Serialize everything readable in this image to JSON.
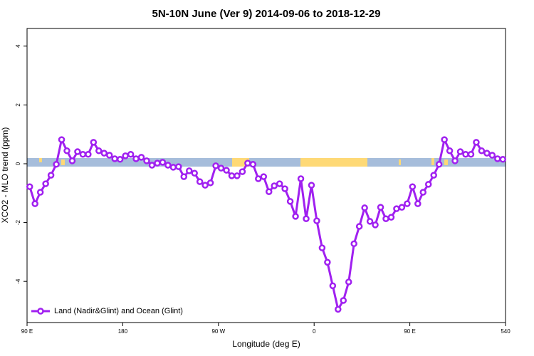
{
  "chart_data": {
    "type": "line",
    "title": "5N-10N June (Ver 9)   2014-09-06 to 2018-12-29",
    "xlabel": "Longitude (deg E)",
    "ylabel": "XCO2 - MLO trend (ppm)",
    "x": [
      92.5,
      97.5,
      102.5,
      107.5,
      112.5,
      117.5,
      122.5,
      127.5,
      132.5,
      137.5,
      142.5,
      147.5,
      152.5,
      157.5,
      162.5,
      167.5,
      172.5,
      177.5,
      182.5,
      187.5,
      192.5,
      197.5,
      202.5,
      207.5,
      212.5,
      217.5,
      222.5,
      227.5,
      232.5,
      237.5,
      242.5,
      247.5,
      252.5,
      257.5,
      262.5,
      267.5,
      272.5,
      277.5,
      282.5,
      287.5,
      292.5,
      297.5,
      302.5,
      307.5,
      312.5,
      317.5,
      322.5,
      327.5,
      332.5,
      337.5,
      342.5,
      347.5,
      352.5,
      357.5,
      362.5,
      367.5,
      372.5,
      377.5,
      382.5,
      387.5,
      392.5,
      397.5,
      402.5,
      407.5,
      412.5,
      417.5,
      422.5,
      427.5,
      432.5,
      437.5,
      442.5,
      447.5,
      452.5,
      457.5,
      462.5,
      467.5,
      472.5,
      477.5,
      482.5,
      487.5,
      492.5,
      497.5,
      502.5,
      507.5,
      512.5,
      517.5,
      522.5,
      527.5,
      532.5,
      537.5
    ],
    "series": [
      {
        "name": "Land (Nadir&Glint) and Ocean (Glint)",
        "color": "#a020f0",
        "values": [
          -0.78,
          -1.36,
          -0.97,
          -0.68,
          -0.39,
          -0.02,
          0.82,
          0.44,
          0.1,
          0.41,
          0.32,
          0.32,
          0.73,
          0.44,
          0.36,
          0.29,
          0.17,
          0.15,
          0.27,
          0.32,
          0.17,
          0.22,
          0.1,
          -0.05,
          0.02,
          0.05,
          -0.05,
          -0.12,
          -0.1,
          -0.44,
          -0.24,
          -0.32,
          -0.61,
          -0.73,
          -0.65,
          -0.07,
          -0.15,
          -0.22,
          -0.41,
          -0.41,
          -0.27,
          0.02,
          -0.02,
          -0.51,
          -0.44,
          -0.95,
          -0.75,
          -0.68,
          -0.85,
          -1.28,
          -1.79,
          -0.51,
          -1.87,
          -0.73,
          -1.94,
          -2.86,
          -3.35,
          -4.15,
          -4.95,
          -4.65,
          -4.02,
          -2.72,
          -2.13,
          -1.5,
          -1.96,
          -2.08,
          -1.48,
          -1.87,
          -1.82,
          -1.53,
          -1.48,
          -1.36,
          -0.78,
          -1.36,
          -0.97,
          -0.7,
          -0.39,
          -0.02,
          0.82,
          0.44,
          0.1,
          0.41,
          0.32,
          0.32,
          0.73,
          0.44,
          0.36,
          0.29,
          0.17,
          0.15
        ]
      }
    ],
    "xlim": [
      90,
      540
    ],
    "xticks": [
      {
        "value": 90,
        "label": "90 E"
      },
      180,
      {
        "value": 270,
        "label": "90 W"
      },
      {
        "value": 360,
        "label": "0"
      },
      {
        "value": 450,
        "label": "90 E"
      },
      540
    ],
    "ylim": [
      -5.4,
      4.6
    ],
    "yticks": [
      -4,
      -2,
      0,
      2,
      4
    ],
    "legend": "bottomleft"
  }
}
